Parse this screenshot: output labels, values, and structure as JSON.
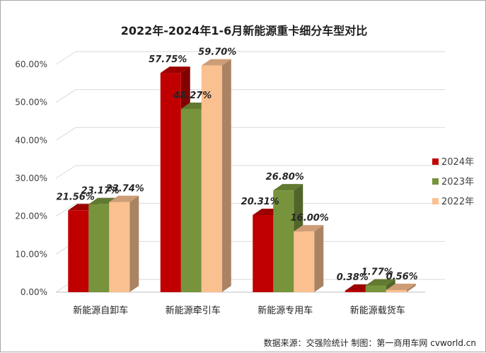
{
  "chart_data": {
    "type": "bar",
    "title": "2022年-2024年1-6月新能源重卡细分车型对比",
    "categories": [
      "新能源自卸车",
      "新能源牵引车",
      "新能源专用车",
      "新能源载货车"
    ],
    "series": [
      {
        "name": "2024年",
        "values": [
          21.56,
          57.75,
          20.31,
          0.38
        ],
        "labels": [
          "21.56%",
          "57.75%",
          "20.31%",
          "0.38%"
        ],
        "color": "#c00000"
      },
      {
        "name": "2023年",
        "values": [
          23.17,
          48.27,
          26.8,
          1.77
        ],
        "labels": [
          "23.17%",
          "48.27%",
          "26.80%",
          "1.77%"
        ],
        "color": "#77933c"
      },
      {
        "name": "2022年",
        "values": [
          23.74,
          59.7,
          16.0,
          0.56
        ],
        "labels": [
          "23.74%",
          "59.70%",
          "16.00%",
          "0.56%"
        ],
        "color": "#fac090"
      }
    ],
    "ylim": [
      0,
      60
    ],
    "yticks": [
      "0.00%",
      "10.00%",
      "20.00%",
      "30.00%",
      "40.00%",
      "50.00%",
      "60.00%"
    ],
    "xlabel": "",
    "ylabel": "",
    "grid": true,
    "legend": "right",
    "source": "数据来源：交强险统计   制图：第一商用车网 cvworld.cn"
  }
}
